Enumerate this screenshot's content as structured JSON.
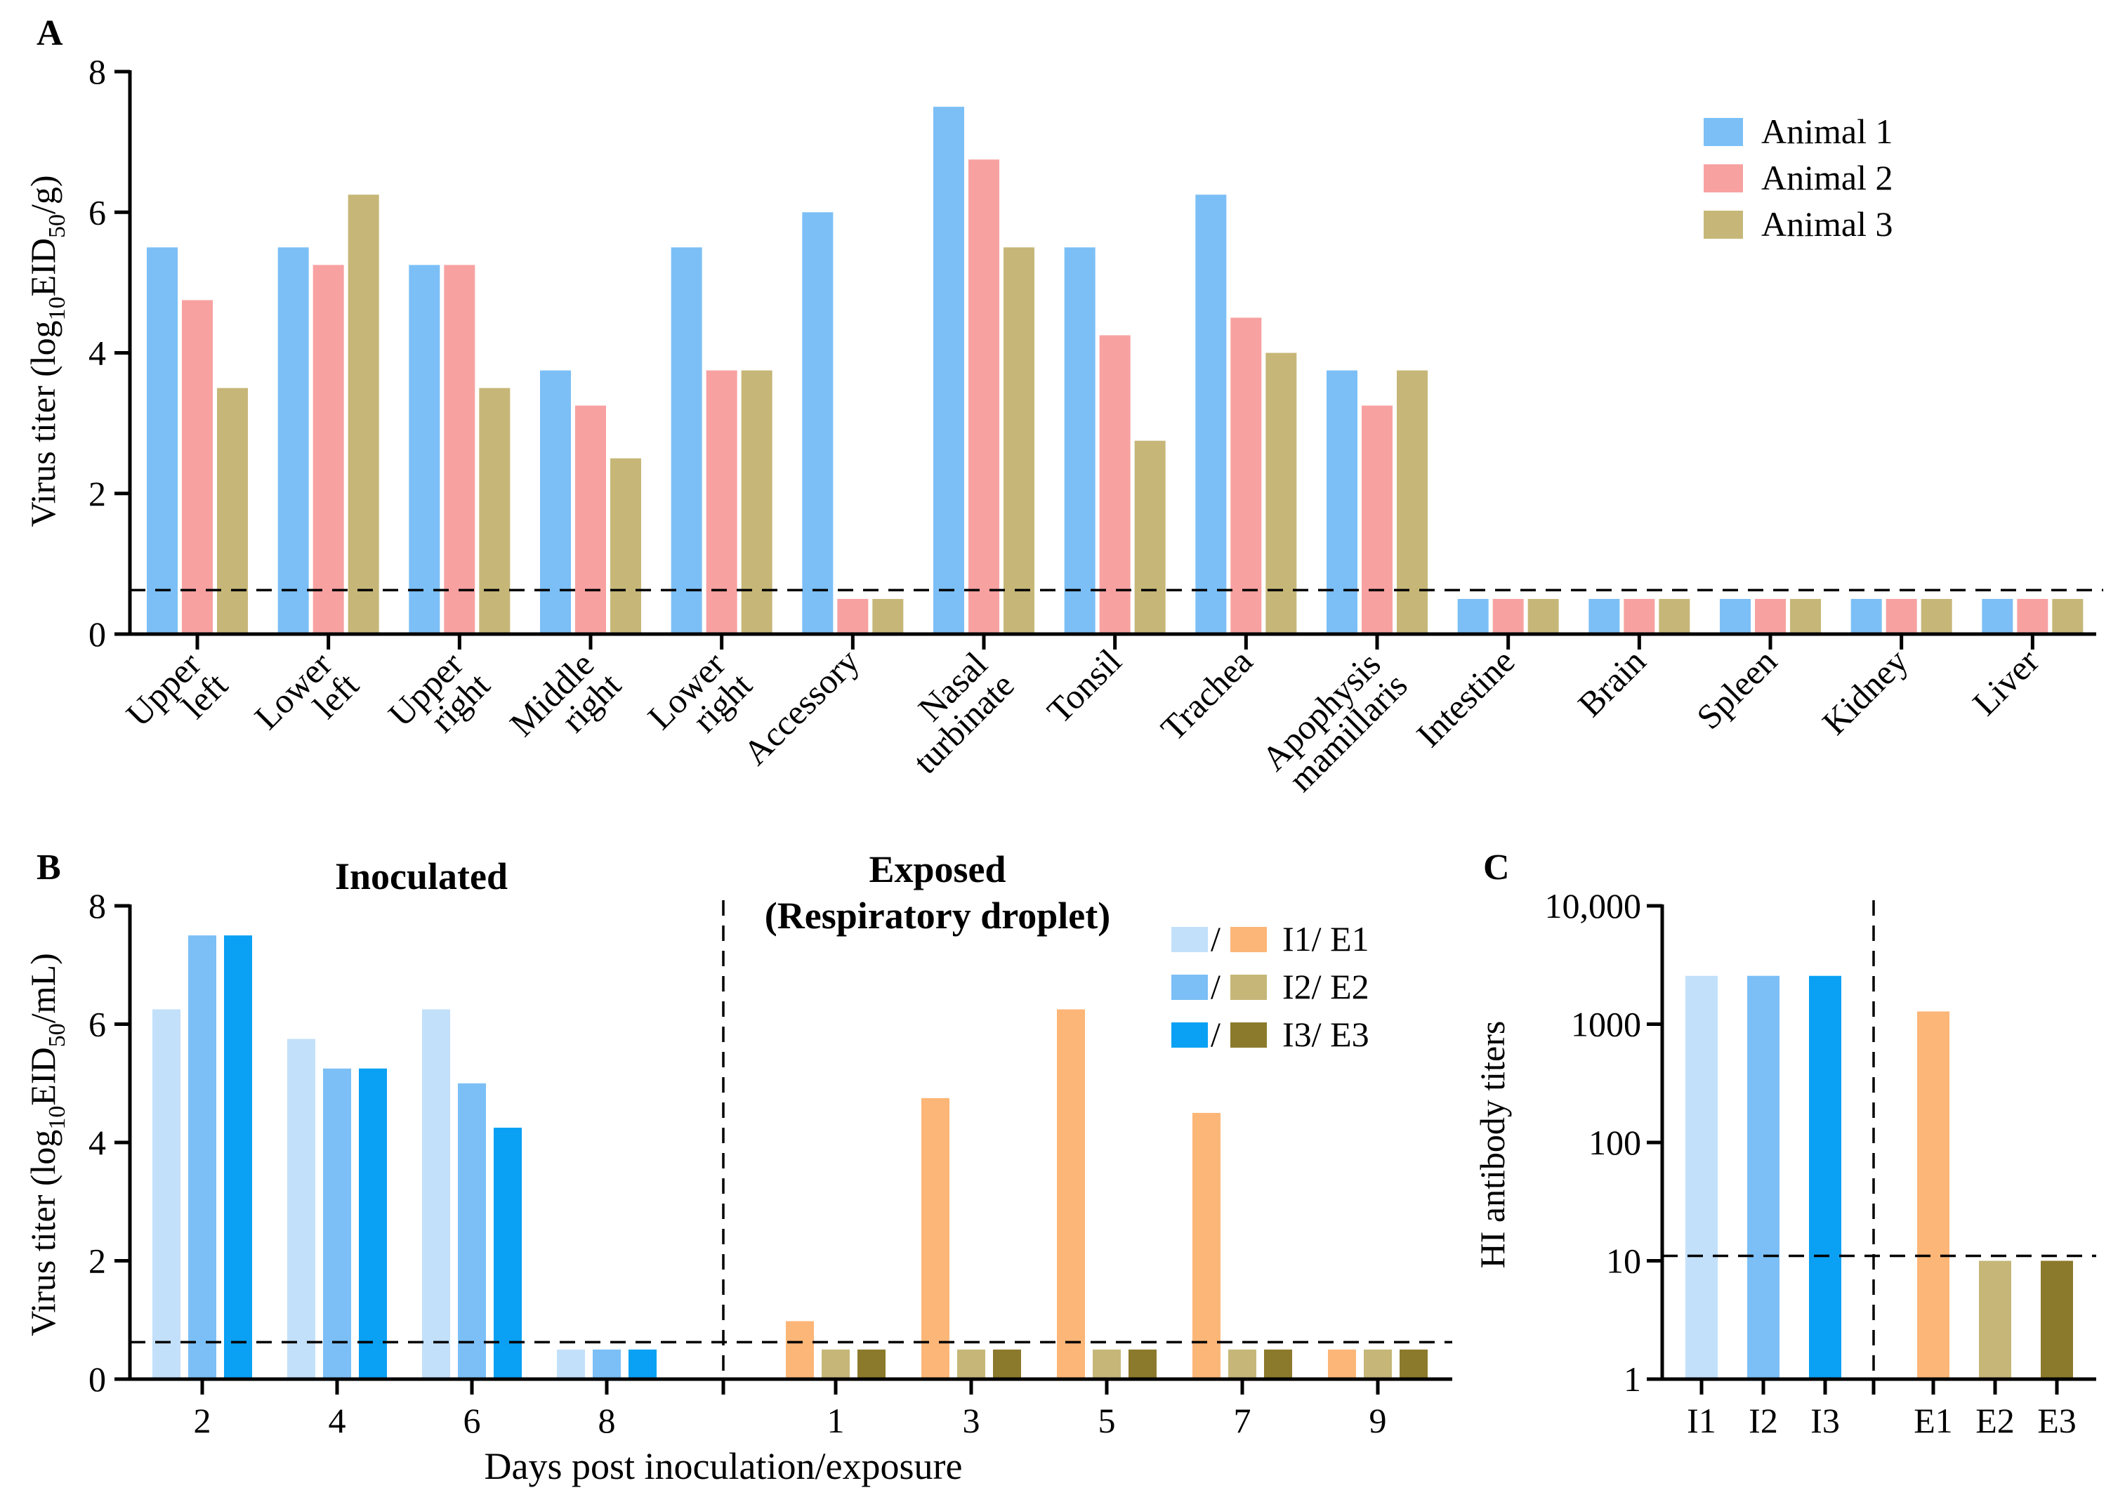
{
  "panel_labels": [
    "A",
    "B",
    "C"
  ],
  "chart_data": [
    {
      "id": "A",
      "type": "bar",
      "ylabel_main": "Virus titer (log",
      "ylabel_sub1": "10",
      "ylabel_mid": "EID",
      "ylabel_sub2": "50",
      "ylabel_end": "/g)",
      "ylim": [
        0,
        8
      ],
      "yticks": [
        "0",
        "2",
        "4",
        "6",
        "8"
      ],
      "detection_limit": 0.625,
      "categories": [
        [
          "Upper",
          "left"
        ],
        [
          "Lower",
          "left"
        ],
        [
          "Upper",
          "right"
        ],
        [
          "Middle",
          "right"
        ],
        [
          "Lower",
          "right"
        ],
        [
          "Accessory"
        ],
        [
          "Nasal",
          "turbinate"
        ],
        [
          "Tonsil"
        ],
        [
          "Trachea"
        ],
        [
          "Apophysis",
          "mamillaris"
        ],
        [
          "Intestine"
        ],
        [
          "Brain"
        ],
        [
          "Spleen"
        ],
        [
          "Kidney"
        ],
        [
          "Liver"
        ]
      ],
      "series": [
        {
          "name": "Animal 1",
          "color": "#7bbff6",
          "values": [
            5.5,
            5.5,
            5.25,
            3.75,
            5.5,
            6.0,
            7.5,
            5.5,
            6.25,
            3.75,
            0.5,
            0.5,
            0.5,
            0.5,
            0.5
          ]
        },
        {
          "name": "Animal 2",
          "color": "#f8a1a1",
          "values": [
            4.75,
            5.25,
            5.25,
            3.25,
            3.75,
            0.5,
            6.75,
            4.25,
            4.5,
            3.25,
            0.5,
            0.5,
            0.5,
            0.5,
            0.5
          ]
        },
        {
          "name": "Animal 3",
          "color": "#c6b778",
          "values": [
            3.5,
            6.25,
            3.5,
            2.5,
            3.75,
            0.5,
            5.5,
            2.75,
            4.0,
            3.75,
            0.5,
            0.5,
            0.5,
            0.5,
            0.5
          ]
        }
      ],
      "legend_position": "top-right"
    },
    {
      "id": "B",
      "type": "bar",
      "ylabel_main": "Virus titer (log",
      "ylabel_sub1": "10",
      "ylabel_mid": "EID",
      "ylabel_sub2": "50",
      "ylabel_end": "/mL)",
      "xlabel": "Days post inoculation/exposure",
      "ylim": [
        0,
        8
      ],
      "yticks": [
        "0",
        "2",
        "4",
        "6",
        "8"
      ],
      "detection_limit": 0.625,
      "group_titles": {
        "inoculated": "Inoculated",
        "exposed_1": "Exposed",
        "exposed_2": "(Respiratory droplet)"
      },
      "inoculated": {
        "days": [
          "2",
          "4",
          "6",
          "8"
        ],
        "series": [
          {
            "name": "I1",
            "color": "#c2e0fa",
            "values": [
              6.25,
              5.75,
              6.25,
              0.5
            ]
          },
          {
            "name": "I2",
            "color": "#7bbff6",
            "values": [
              7.5,
              5.25,
              5.0,
              0.5
            ]
          },
          {
            "name": "I3",
            "color": "#0aa1f4",
            "values": [
              7.5,
              5.25,
              4.25,
              0.5
            ]
          }
        ]
      },
      "exposed": {
        "days": [
          "1",
          "3",
          "5",
          "7",
          "9"
        ],
        "series": [
          {
            "name": "E1",
            "color": "#fcb677",
            "values": [
              0.98,
              4.75,
              6.25,
              4.5,
              0.5
            ]
          },
          {
            "name": "E2",
            "color": "#c6b778",
            "values": [
              0.5,
              0.5,
              0.5,
              0.5,
              0.5
            ]
          },
          {
            "name": "E3",
            "color": "#8c7a2c",
            "values": [
              0.5,
              0.5,
              0.5,
              0.5,
              0.5
            ]
          }
        ]
      },
      "legend": [
        "I1",
        "E1",
        "I2",
        "E2",
        "I3",
        "E3"
      ],
      "legend_position": "top-right"
    },
    {
      "id": "C",
      "type": "bar",
      "scale": "log",
      "ylabel": "HI antibody titers",
      "ylim": [
        1,
        10000
      ],
      "yticks": [
        "1",
        "10",
        "100",
        "1000",
        "10,000"
      ],
      "detection_limit": 11,
      "categories": [
        "I1",
        "I2",
        "I3",
        "E1",
        "E2",
        "E3"
      ],
      "values": [
        2560,
        2560,
        2560,
        1280,
        10,
        10
      ],
      "colors": [
        "#c2e0fa",
        "#7bbff6",
        "#0aa1f4",
        "#fcb677",
        "#c6b778",
        "#8c7a2c"
      ]
    }
  ]
}
